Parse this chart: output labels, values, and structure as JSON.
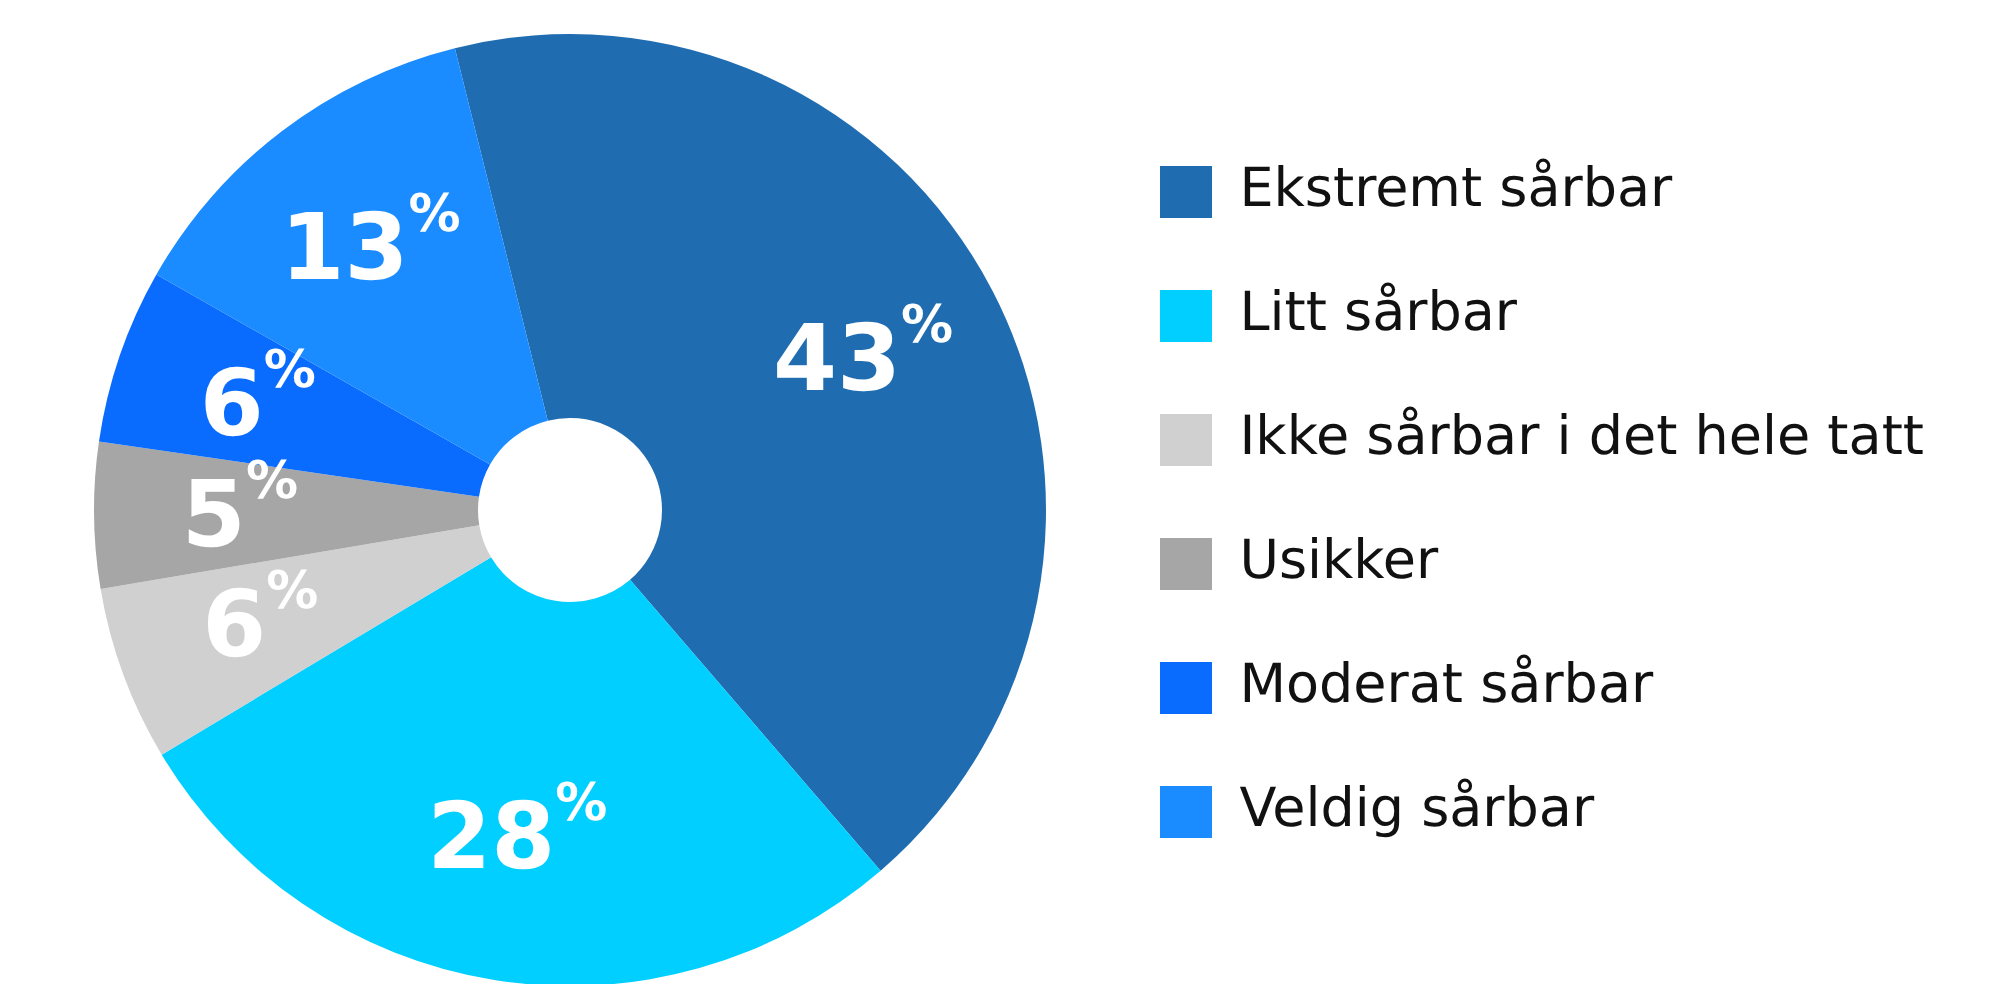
{
  "chart_data": {
    "type": "donut",
    "categories": [
      "Ekstremt sårbar",
      "Litt sårbar",
      "Ikke sårbar i det hele tatt",
      "Usikker",
      "Moderat sårbar",
      "Veldig sårbar"
    ],
    "values": [
      43,
      28,
      6,
      5,
      6,
      13
    ],
    "colors": [
      "#1f6db0",
      "#00cfff",
      "#d0d0d0",
      "#a6a6a6",
      "#0a6cff",
      "#1a8cff"
    ],
    "value_labels": [
      "43$^{%}$",
      "28$^{%}$",
      "6$^{%}$",
      "5$^{%}$",
      "6$^{%}$",
      "13$^{%}$"
    ],
    "legend": "right"
  }
}
